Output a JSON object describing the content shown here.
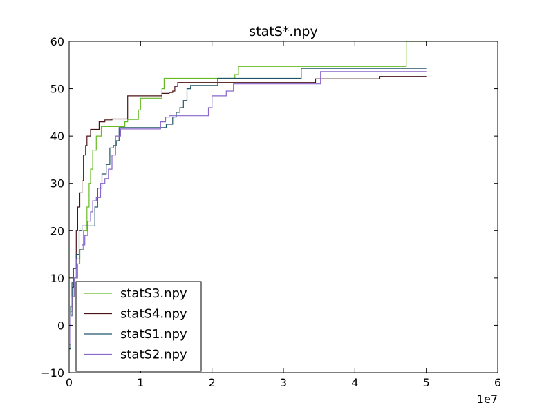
{
  "chart_data": {
    "type": "line",
    "title": "statS*.npy",
    "xlabel": "",
    "ylabel": "",
    "x_offset_label": "1e7",
    "xlim": [
      0,
      6
    ],
    "ylim": [
      -10,
      60
    ],
    "xticks": [
      0,
      1,
      2,
      3,
      4,
      5,
      6
    ],
    "yticks": [
      -10,
      0,
      10,
      20,
      30,
      40,
      50,
      60
    ],
    "grid": false,
    "legend_position": "lower-left",
    "series": [
      {
        "name": "statS3.npy",
        "color": "#66bb22",
        "points": [
          [
            0,
            -5
          ],
          [
            0.02,
            2
          ],
          [
            0.05,
            6
          ],
          [
            0.08,
            10
          ],
          [
            0.12,
            13
          ],
          [
            0.15,
            16
          ],
          [
            0.2,
            20
          ],
          [
            0.25,
            25
          ],
          [
            0.28,
            30
          ],
          [
            0.3,
            33
          ],
          [
            0.33,
            37
          ],
          [
            0.38,
            40
          ],
          [
            0.45,
            42
          ],
          [
            0.6,
            42
          ],
          [
            0.75,
            42
          ],
          [
            0.78,
            43
          ],
          [
            0.82,
            43.5
          ],
          [
            0.95,
            43.5
          ],
          [
            0.97,
            45.5
          ],
          [
            1.0,
            48
          ],
          [
            1.28,
            48
          ],
          [
            1.3,
            50
          ],
          [
            1.33,
            52.2
          ],
          [
            2.3,
            52.2
          ],
          [
            2.32,
            53
          ],
          [
            2.37,
            54.7
          ],
          [
            4.7,
            54.7
          ],
          [
            4.72,
            60
          ],
          [
            5.0,
            60
          ]
        ]
      },
      {
        "name": "statS4.npy",
        "color": "#4b1414",
        "points": [
          [
            0,
            -4
          ],
          [
            0.02,
            3
          ],
          [
            0.04,
            8
          ],
          [
            0.06,
            12
          ],
          [
            0.1,
            20
          ],
          [
            0.12,
            25
          ],
          [
            0.15,
            28
          ],
          [
            0.18,
            30.5
          ],
          [
            0.2,
            36
          ],
          [
            0.23,
            38
          ],
          [
            0.25,
            40
          ],
          [
            0.3,
            41.4
          ],
          [
            0.4,
            41.4
          ],
          [
            0.42,
            43
          ],
          [
            0.5,
            43.4
          ],
          [
            0.6,
            43.6
          ],
          [
            0.8,
            43.6
          ],
          [
            0.82,
            48.5
          ],
          [
            1.25,
            48.5
          ],
          [
            1.3,
            49
          ],
          [
            1.4,
            49.2
          ],
          [
            1.45,
            49.5
          ],
          [
            1.48,
            50.5
          ],
          [
            1.52,
            51.3
          ],
          [
            3.4,
            51.3
          ],
          [
            3.45,
            52.1
          ],
          [
            4.3,
            52.1
          ],
          [
            4.35,
            52.6
          ],
          [
            5.0,
            52.6
          ]
        ]
      },
      {
        "name": "statS1.npy",
        "color": "#22556a",
        "points": [
          [
            0,
            -5
          ],
          [
            0.02,
            4
          ],
          [
            0.04,
            9
          ],
          [
            0.06,
            12
          ],
          [
            0.1,
            15
          ],
          [
            0.14,
            20
          ],
          [
            0.18,
            21
          ],
          [
            0.34,
            21
          ],
          [
            0.36,
            25
          ],
          [
            0.4,
            29
          ],
          [
            0.46,
            32
          ],
          [
            0.52,
            34
          ],
          [
            0.57,
            37.5
          ],
          [
            0.62,
            38
          ],
          [
            0.66,
            39
          ],
          [
            0.7,
            41.8
          ],
          [
            1.3,
            41.8
          ],
          [
            1.36,
            42.5
          ],
          [
            1.45,
            44
          ],
          [
            1.5,
            45
          ],
          [
            1.55,
            46
          ],
          [
            1.6,
            47.5
          ],
          [
            1.65,
            50
          ],
          [
            1.7,
            50.7
          ],
          [
            2.05,
            50.7
          ],
          [
            2.08,
            52.2
          ],
          [
            3.2,
            52.2
          ],
          [
            3.25,
            54.3
          ],
          [
            5.0,
            54.3
          ]
        ]
      },
      {
        "name": "statS2.npy",
        "color": "#8866cc",
        "points": [
          [
            0,
            -4
          ],
          [
            0.02,
            2
          ],
          [
            0.04,
            6
          ],
          [
            0.07,
            10
          ],
          [
            0.1,
            14
          ],
          [
            0.15,
            16
          ],
          [
            0.18,
            17
          ],
          [
            0.22,
            19
          ],
          [
            0.26,
            22
          ],
          [
            0.3,
            24
          ],
          [
            0.33,
            26.3
          ],
          [
            0.38,
            27
          ],
          [
            0.44,
            30
          ],
          [
            0.5,
            31
          ],
          [
            0.55,
            33
          ],
          [
            0.6,
            36
          ],
          [
            0.65,
            40
          ],
          [
            0.72,
            41.5
          ],
          [
            1.25,
            41.5
          ],
          [
            1.28,
            43
          ],
          [
            1.35,
            44
          ],
          [
            1.4,
            44.3
          ],
          [
            1.9,
            44.3
          ],
          [
            1.95,
            46
          ],
          [
            2.0,
            48.5
          ],
          [
            2.15,
            48.5
          ],
          [
            2.2,
            49.5
          ],
          [
            2.3,
            51
          ],
          [
            3.5,
            51
          ],
          [
            3.52,
            53.6
          ],
          [
            5.0,
            53.6
          ]
        ]
      }
    ]
  }
}
